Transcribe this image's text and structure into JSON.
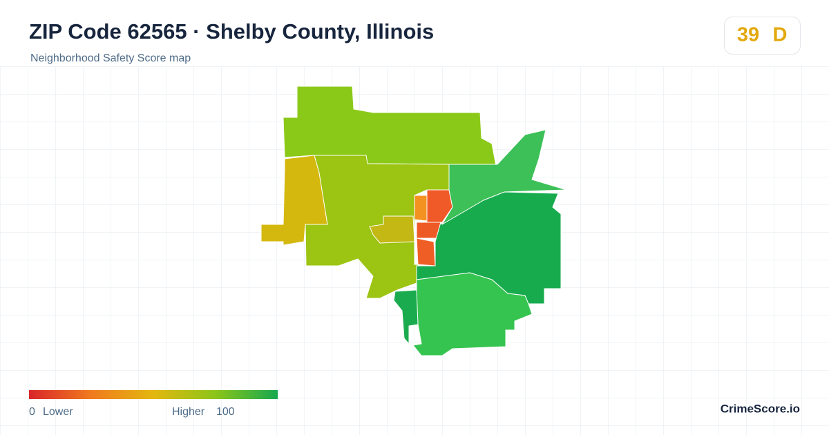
{
  "header": {
    "title": "ZIP Code 62565 · Shelby County, Illinois",
    "subtitle": "Neighborhood Safety Score map"
  },
  "badge": {
    "score": "39",
    "grade": "D"
  },
  "legend": {
    "min": "0",
    "min_label": "Lower",
    "max_label": "Higher",
    "max": "100"
  },
  "brand": "CrimeScore.io"
}
